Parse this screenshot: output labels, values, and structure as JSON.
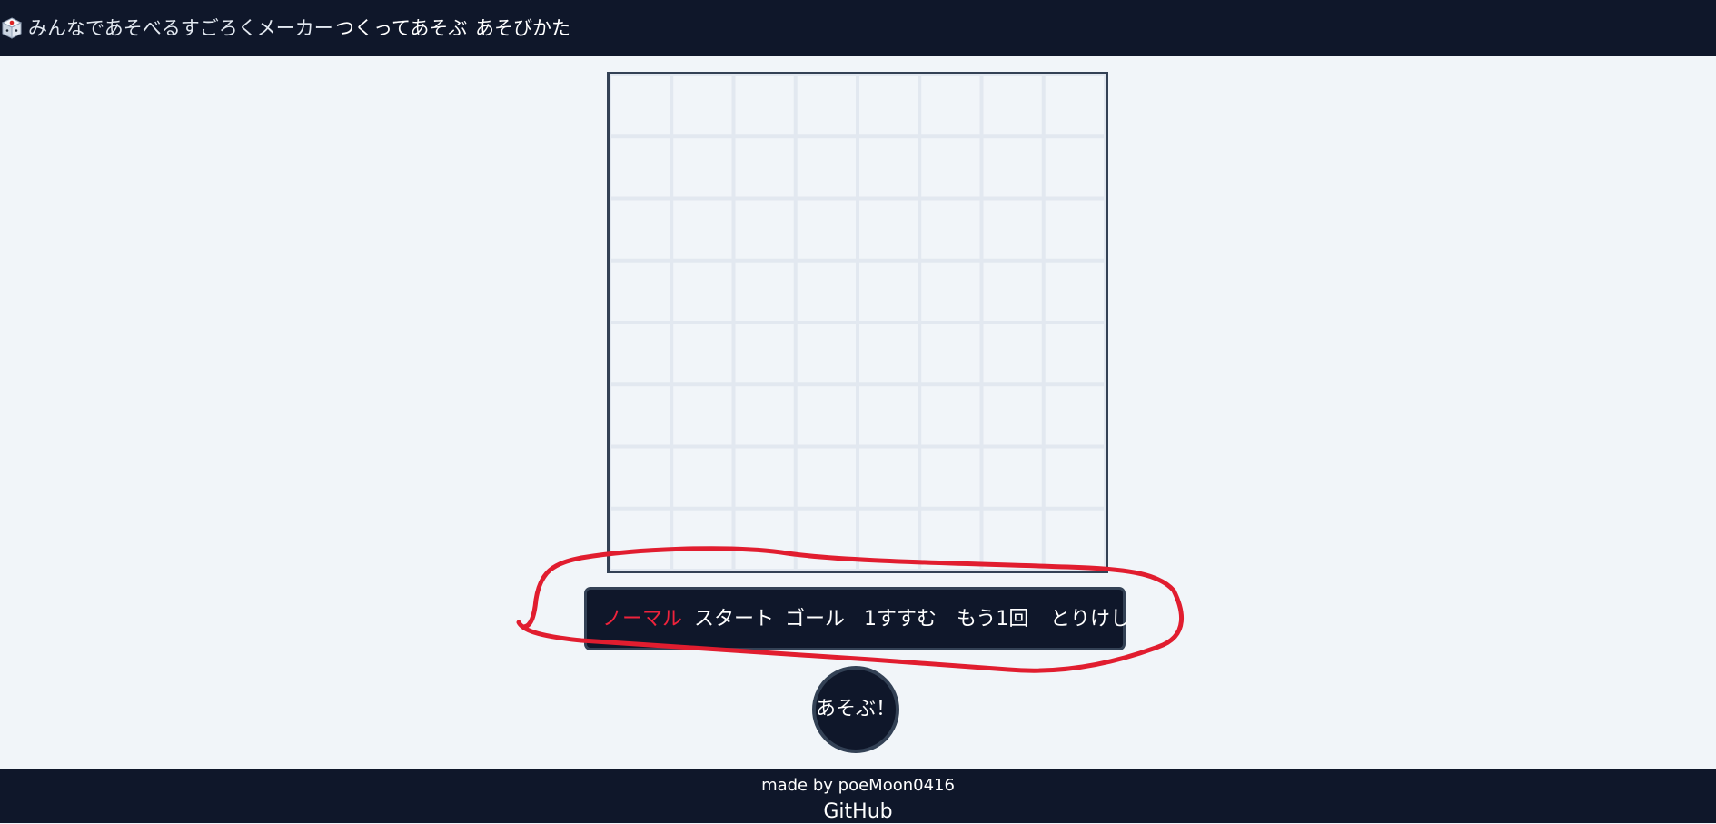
{
  "header": {
    "brand": "みんなであそべるすごろくメーカー",
    "nav": {
      "create": "つくってあそぶ",
      "howto": "あそびかた"
    },
    "logo_icon": "dice-icon"
  },
  "board": {
    "rows": 8,
    "cols": 8
  },
  "toolbar": {
    "tools": [
      {
        "label": "ノーマル",
        "selected": true
      },
      {
        "label": "スタート",
        "selected": false
      },
      {
        "label": "ゴール",
        "selected": false
      },
      {
        "label": "1すすむ",
        "selected": false
      },
      {
        "label": "もう1回",
        "selected": false
      },
      {
        "label": "とりけし",
        "selected": false
      }
    ]
  },
  "play_button": {
    "label": "あそぶ！"
  },
  "footer": {
    "credit": "made by poeMoon0416",
    "github": "GitHub"
  },
  "colors": {
    "background": "#f1f5f9",
    "navy": "#0f172a",
    "border": "#334155",
    "grid_line": "#e2e8f0",
    "selected_tool": "#ef233c",
    "annotation": "#e11d2f"
  }
}
